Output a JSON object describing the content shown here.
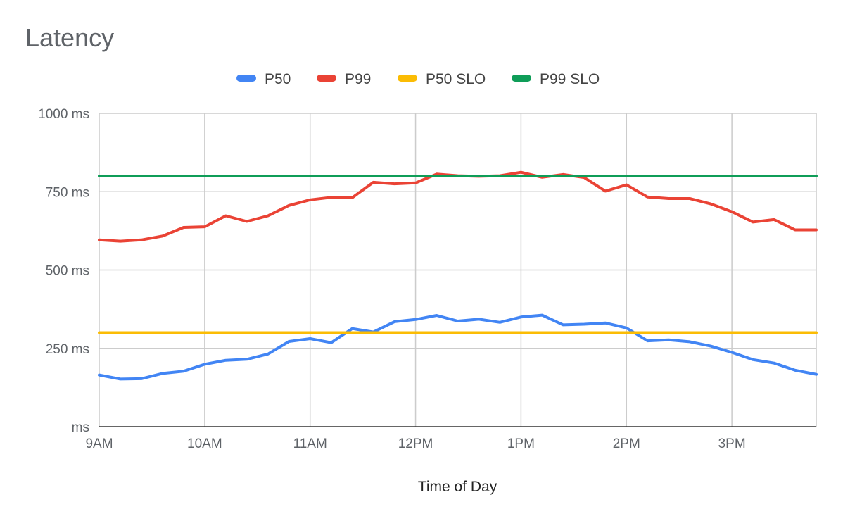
{
  "chart_data": {
    "type": "line",
    "title": "Latency",
    "xlabel": "Time of Day",
    "ylabel": "",
    "ylim": [
      0,
      1000
    ],
    "xlim": [
      0,
      34
    ],
    "y_ticks": [
      {
        "value": 0,
        "label": "ms"
      },
      {
        "value": 250,
        "label": "250 ms"
      },
      {
        "value": 500,
        "label": "500 ms"
      },
      {
        "value": 750,
        "label": "750 ms"
      },
      {
        "value": 1000,
        "label": "1000 ms"
      }
    ],
    "x_ticks": [
      {
        "value": 0,
        "label": "9AM"
      },
      {
        "value": 5,
        "label": "10AM"
      },
      {
        "value": 10,
        "label": "11AM"
      },
      {
        "value": 15,
        "label": "12PM"
      },
      {
        "value": 20,
        "label": "1PM"
      },
      {
        "value": 25,
        "label": "2PM"
      },
      {
        "value": 30,
        "label": "3PM"
      }
    ],
    "grid": true,
    "legend_position": "top",
    "x": [
      0,
      1,
      2,
      3,
      4,
      5,
      6,
      7,
      8,
      9,
      10,
      11,
      12,
      13,
      14,
      15,
      16,
      17,
      18,
      19,
      20,
      21,
      22,
      23,
      24,
      25,
      26,
      27,
      28,
      29,
      30,
      31,
      32,
      33,
      34
    ],
    "series": [
      {
        "name": "P50",
        "color": "#4285f4",
        "values": [
          165,
          152,
          153,
          170,
          177,
          199,
          212,
          215,
          232,
          272,
          281,
          268,
          313,
          302,
          335,
          342,
          355,
          337,
          343,
          333,
          350,
          356,
          325,
          327,
          331,
          315,
          274,
          277,
          271,
          257,
          237,
          214,
          203,
          180,
          167
        ]
      },
      {
        "name": "P99",
        "color": "#ea4335",
        "values": [
          596,
          592,
          596,
          608,
          636,
          638,
          673,
          655,
          673,
          706,
          724,
          732,
          731,
          780,
          775,
          778,
          806,
          801,
          799,
          801,
          812,
          796,
          805,
          795,
          752,
          772,
          733,
          728,
          728,
          711,
          686,
          653,
          661,
          628,
          628
        ]
      },
      {
        "name": "P50 SLO",
        "color": "#fbbc04",
        "values": [
          300,
          300,
          300,
          300,
          300,
          300,
          300,
          300,
          300,
          300,
          300,
          300,
          300,
          300,
          300,
          300,
          300,
          300,
          300,
          300,
          300,
          300,
          300,
          300,
          300,
          300,
          300,
          300,
          300,
          300,
          300,
          300,
          300,
          300,
          300
        ]
      },
      {
        "name": "P99 SLO",
        "color": "#0f9d58",
        "values": [
          800,
          800,
          800,
          800,
          800,
          800,
          800,
          800,
          800,
          800,
          800,
          800,
          800,
          800,
          800,
          800,
          800,
          800,
          800,
          800,
          800,
          800,
          800,
          800,
          800,
          800,
          800,
          800,
          800,
          800,
          800,
          800,
          800,
          800,
          800
        ]
      }
    ]
  }
}
